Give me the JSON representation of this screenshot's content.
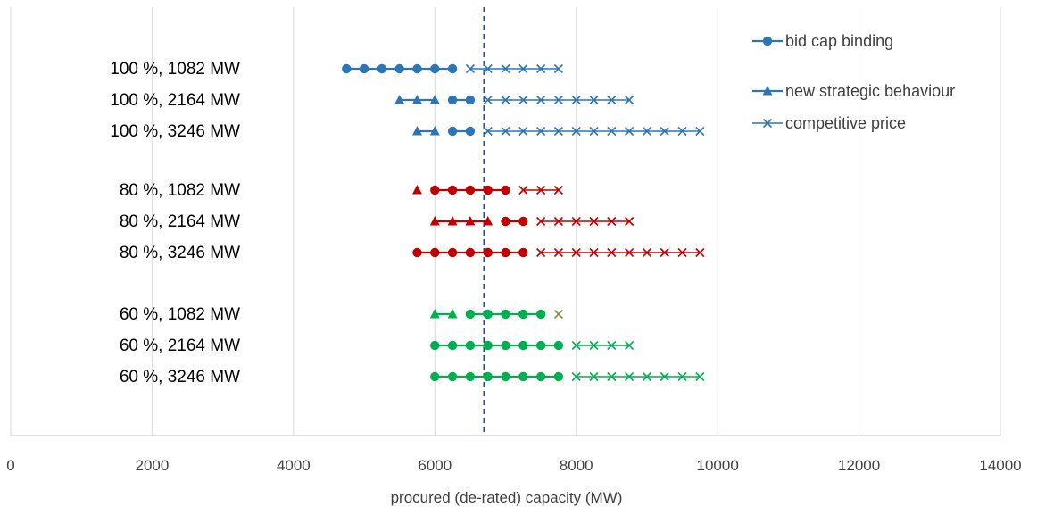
{
  "chart_data": {
    "type": "scatter",
    "title": "",
    "xlabel": "procured (de-rated) capacity (MW)",
    "ylabel": "",
    "xlim": [
      0,
      14000
    ],
    "x_ticks": [
      0,
      2000,
      4000,
      6000,
      8000,
      10000,
      12000,
      14000
    ],
    "x_tick_labels": [
      "0",
      "2000",
      "4000",
      "6000",
      "8000",
      "10000",
      "12000",
      "14000"
    ],
    "grid": "vertical",
    "legend_position": "top-right",
    "reference_line": {
      "x": 6700,
      "style": "dashed",
      "color": "#2F4A6E"
    },
    "legend": [
      {
        "label": "bid cap binding",
        "marker": "circle"
      },
      {
        "label": "new strategic behaviour",
        "marker": "triangle"
      },
      {
        "label": "competitive price",
        "marker": "x"
      }
    ],
    "colors": {
      "blue": "#2E75B6",
      "red": "#C00000",
      "green": "#00B050",
      "olive": "#7F8F3A"
    },
    "rows": [
      {
        "label": "100 %, 1082 MW",
        "color": "#2E75B6",
        "triangle": [],
        "circle": [
          [
            4750,
            5000,
            5250,
            5500,
            5750,
            6000,
            6250
          ]
        ],
        "x": [
          [
            6500,
            6750,
            7000,
            7250,
            7500,
            7750
          ]
        ]
      },
      {
        "label": "100 %, 2164 MW",
        "color": "#2E75B6",
        "triangle": [
          [
            5500,
            5750,
            6000
          ]
        ],
        "circle": [
          [
            6250,
            6500
          ]
        ],
        "x": [
          [
            6750,
            7000,
            7250,
            7500,
            7750,
            8000,
            8250,
            8500,
            8750
          ]
        ]
      },
      {
        "label": "100 %, 3246 MW",
        "color": "#2E75B6",
        "triangle": [
          [
            5750,
            6000
          ]
        ],
        "circle": [
          [
            6250,
            6500
          ]
        ],
        "x": [
          [
            6750,
            7000,
            7250,
            7500,
            7750,
            8000,
            8250,
            8500,
            8750,
            9000,
            9250,
            9500,
            9750
          ]
        ]
      },
      {
        "label": "80 %, 1082 MW",
        "color": "#C00000",
        "triangle": [
          [
            5750
          ]
        ],
        "circle": [
          [
            6000,
            6250,
            6500,
            6750,
            7000
          ]
        ],
        "x": [
          [
            7250,
            7500,
            7750
          ]
        ]
      },
      {
        "label": "80 %, 2164 MW",
        "color": "#C00000",
        "triangle": [
          [
            6000,
            6250,
            6500,
            6750
          ]
        ],
        "circle": [
          [
            7000,
            7250
          ]
        ],
        "x": [
          [
            7500,
            7750,
            8000,
            8250,
            8500,
            8750
          ]
        ]
      },
      {
        "label": "80 %, 3246 MW",
        "color": "#C00000",
        "triangle": [],
        "circle": [
          [
            5750,
            6000,
            6250,
            6500,
            6750,
            7000,
            7250
          ]
        ],
        "x": [
          [
            7500,
            7750,
            8000,
            8250,
            8500,
            8750,
            9000,
            9250,
            9500,
            9750
          ]
        ]
      },
      {
        "label": "60 %, 1082 MW",
        "color": "#00B050",
        "triangle": [
          [
            6000,
            6250
          ]
        ],
        "circle": [
          [
            6500,
            6750,
            7000,
            7250,
            7500
          ]
        ],
        "x": [],
        "x_single": [
          7750
        ],
        "x_single_color": "#7F8F3A"
      },
      {
        "label": "60 %, 2164 MW",
        "color": "#00B050",
        "triangle": [],
        "circle": [
          [
            6000,
            6250,
            6500,
            6750,
            7000,
            7250,
            7500,
            7750
          ]
        ],
        "x": [
          [
            8000,
            8250,
            8500,
            8750
          ]
        ]
      },
      {
        "label": "60 %, 3246 MW",
        "color": "#00B050",
        "triangle": [],
        "circle": [
          [
            6000,
            6250,
            6500,
            6750,
            7000,
            7250,
            7500,
            7750
          ]
        ],
        "x": [
          [
            8000,
            8250,
            8500,
            8750,
            9000,
            9250,
            9500,
            9750
          ]
        ]
      }
    ]
  }
}
